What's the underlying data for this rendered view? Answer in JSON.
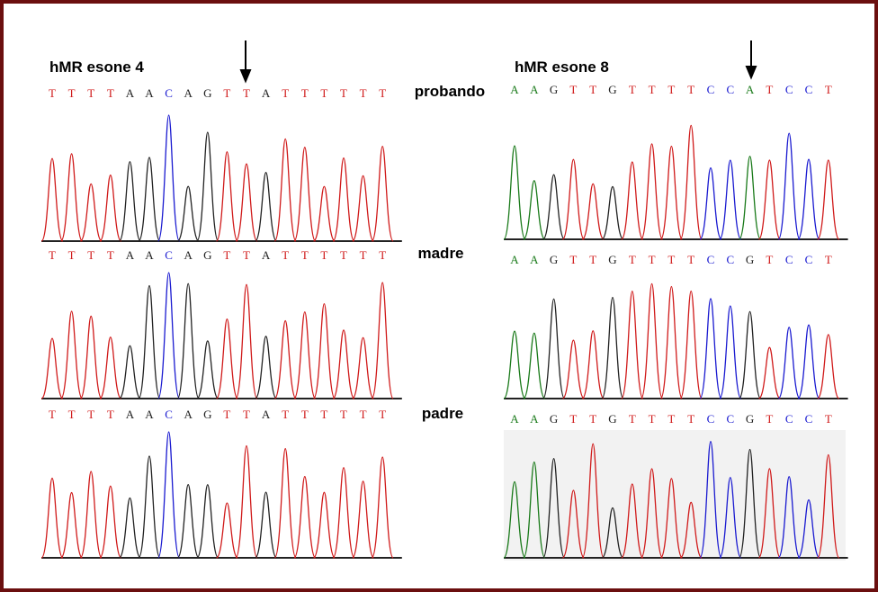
{
  "panels": [
    {
      "title": "hMR esone 4",
      "rows": [
        [
          "T",
          "T",
          "T",
          "T",
          "A",
          "A",
          "C",
          "A",
          "G",
          "T",
          "T",
          "A",
          "T",
          "T",
          "T",
          "T",
          "T",
          "T"
        ],
        [
          "T",
          "T",
          "T",
          "T",
          "A",
          "A",
          "C",
          "A",
          "G",
          "T",
          "T",
          "A",
          "T",
          "T",
          "T",
          "T",
          "T",
          "T"
        ],
        [
          "T",
          "T",
          "T",
          "T",
          "A",
          "A",
          "C",
          "A",
          "G",
          "T",
          "T",
          "A",
          "T",
          "T",
          "T",
          "T",
          "T",
          "T"
        ]
      ]
    },
    {
      "title": "hMR esone 8",
      "rows": [
        [
          "A",
          "A",
          "G",
          "T",
          "T",
          "G",
          "T",
          "T",
          "T",
          "T",
          "C",
          "C",
          "A",
          "T",
          "C",
          "C",
          "T"
        ],
        [
          "A",
          "A",
          "G",
          "T",
          "T",
          "G",
          "T",
          "T",
          "T",
          "T",
          "C",
          "C",
          "G",
          "T",
          "C",
          "C",
          "T"
        ],
        [
          "A",
          "A",
          "G",
          "T",
          "T",
          "G",
          "T",
          "T",
          "T",
          "T",
          "C",
          "C",
          "G",
          "T",
          "C",
          "C",
          "T"
        ]
      ]
    }
  ],
  "labels": [
    "probando",
    "madre",
    "padre"
  ]
}
